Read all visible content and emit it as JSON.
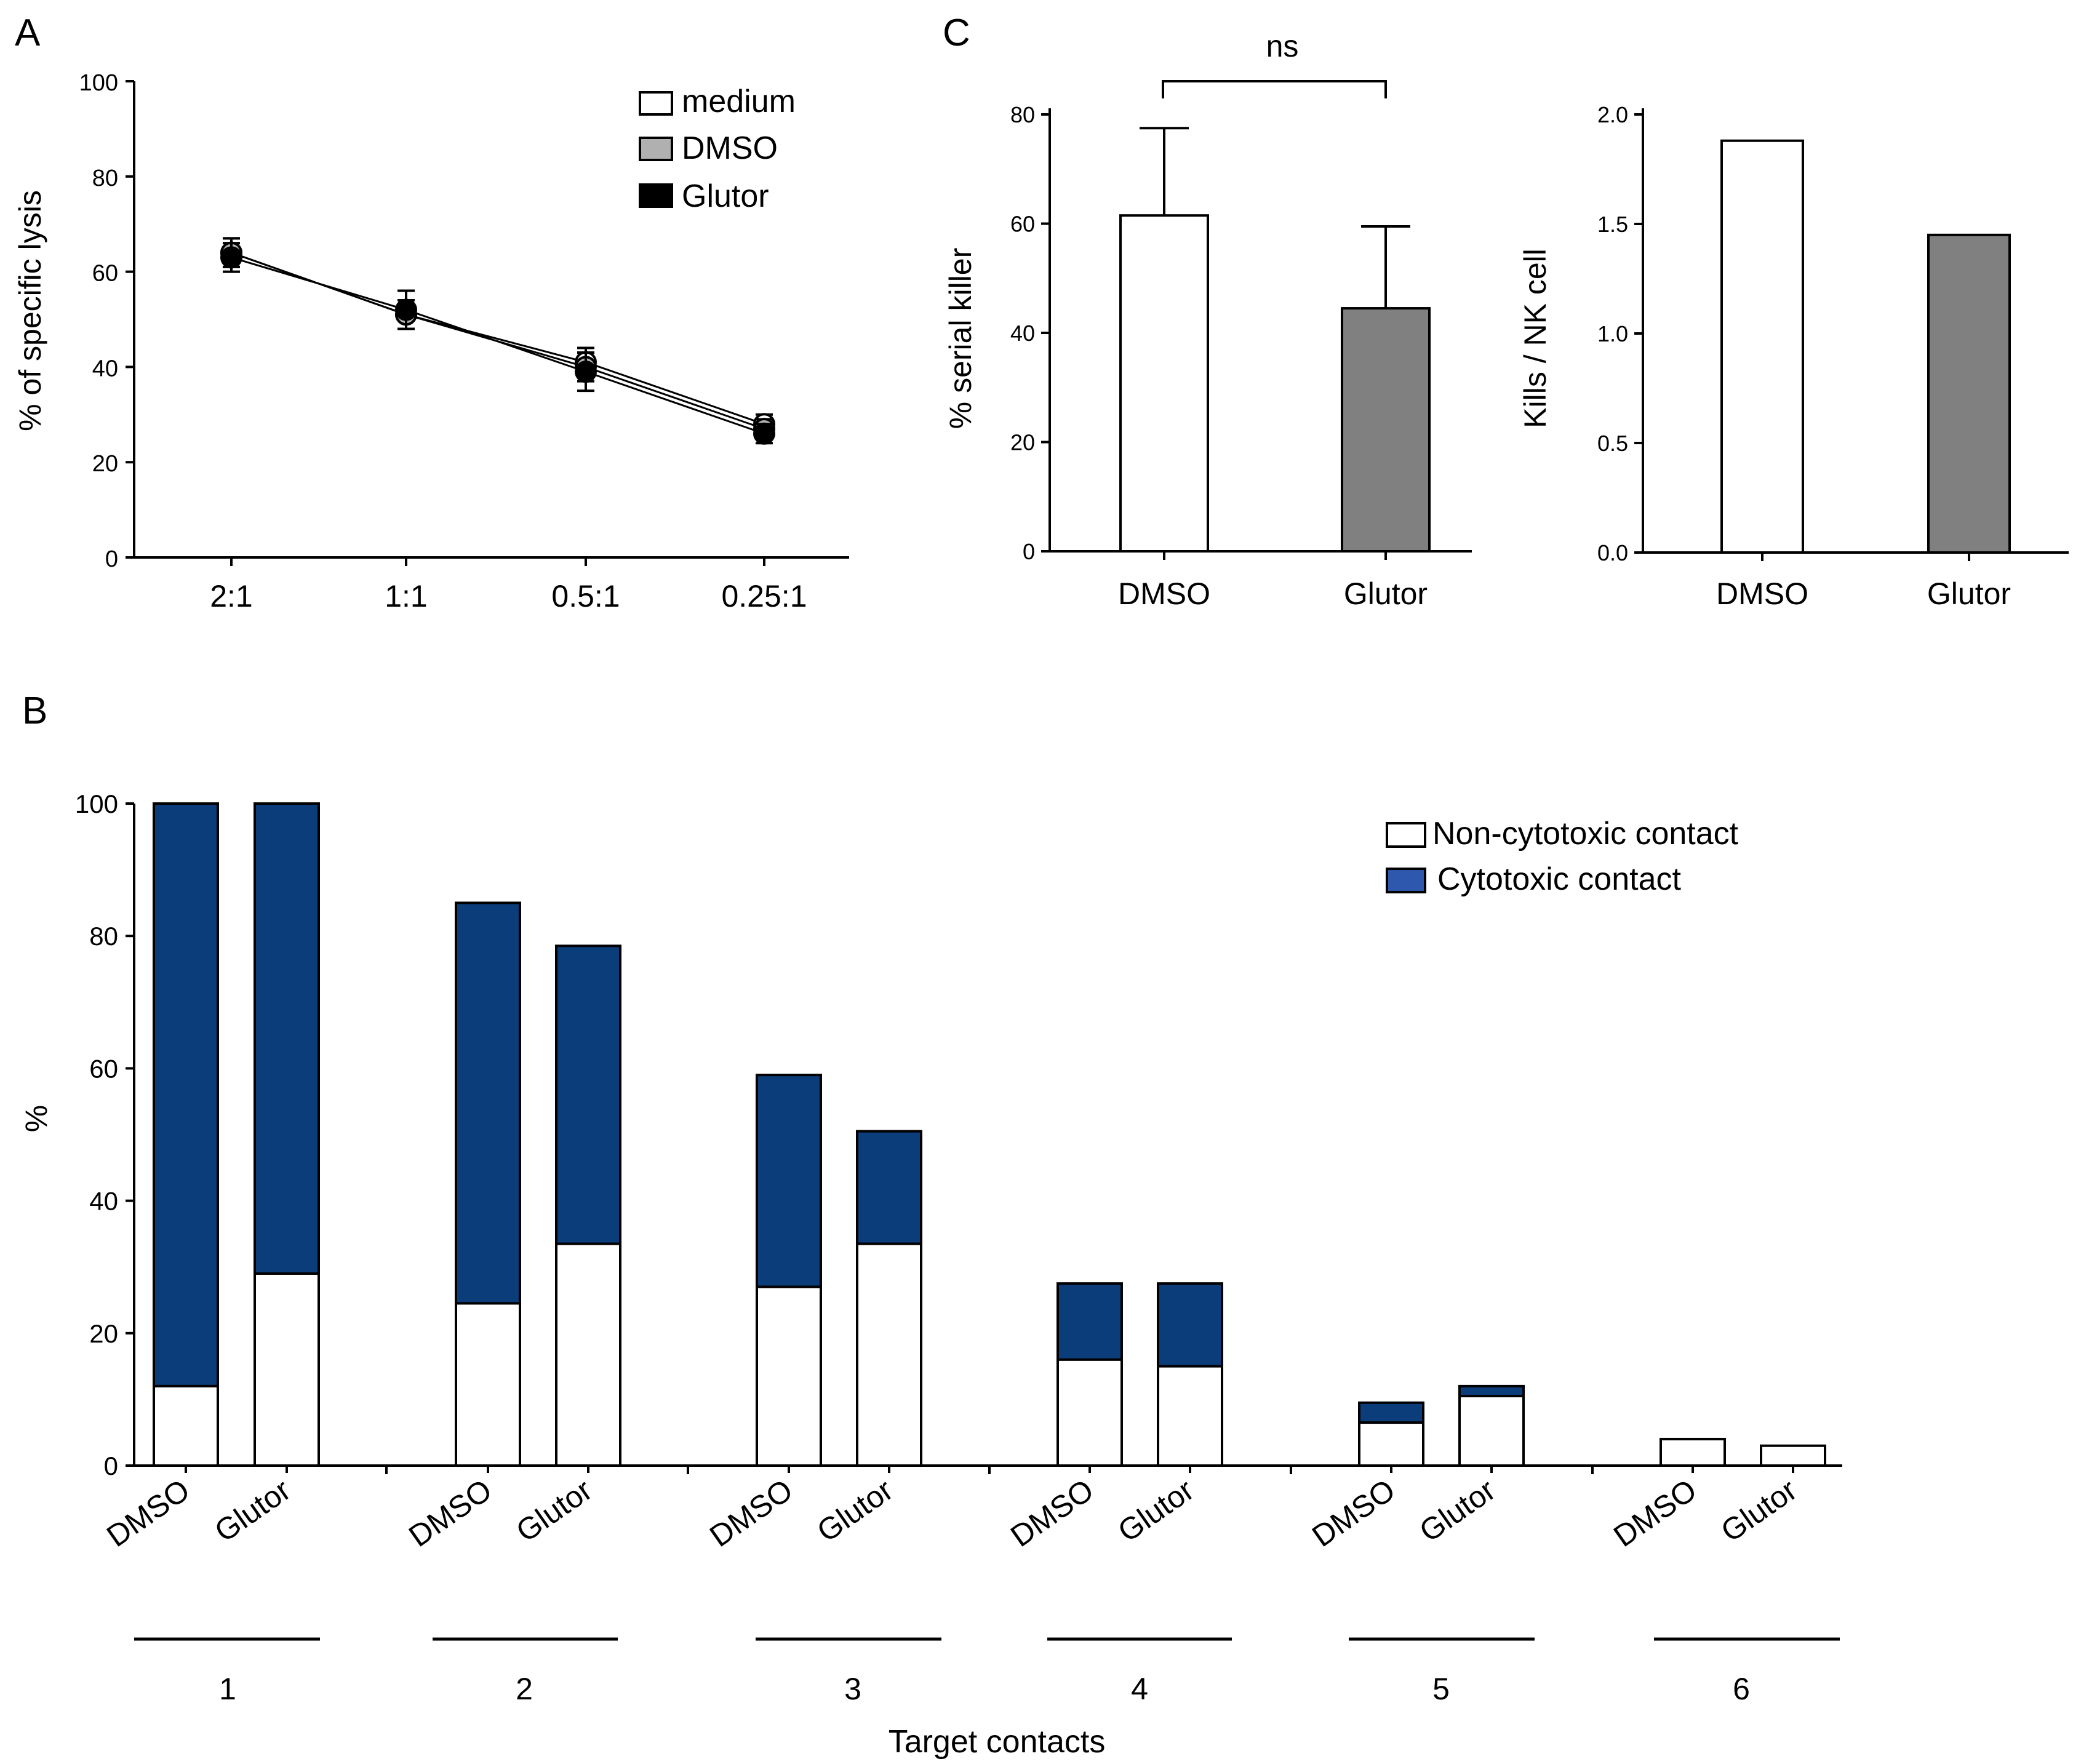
{
  "panel_labels": {
    "a": "A",
    "b": "B",
    "c": "C"
  },
  "colors": {
    "cytotoxic": "#0b3d7a",
    "non_cytotoxic": "#ffffff",
    "glutor_bar": "#808080",
    "dmso_bar": "#ffffff"
  },
  "chart_data": [
    {
      "id": "A",
      "type": "line",
      "ylabel": "% of specific lysis",
      "xlabel": "",
      "categories": [
        "2:1",
        "1:1",
        "0.5:1",
        "0.25:1"
      ],
      "ylim": [
        0,
        100
      ],
      "yticks": [
        "0",
        "20",
        "40",
        "60",
        "80",
        "100"
      ],
      "legend_position": "top-right",
      "series": [
        {
          "name": "medium",
          "color": "#ffffff",
          "values": [
            64,
            51,
            41,
            28
          ],
          "errors": [
            3,
            3,
            3,
            2
          ]
        },
        {
          "name": "DMSO",
          "color": "#b0b0b0",
          "values": [
            64,
            51,
            40,
            27
          ],
          "errors": [
            3,
            3,
            3,
            2
          ]
        },
        {
          "name": "Glutor",
          "color": "#000000",
          "values": [
            63,
            52,
            39,
            26
          ],
          "errors": [
            3,
            4,
            4,
            2
          ]
        }
      ]
    },
    {
      "id": "B",
      "type": "bar",
      "stacked": true,
      "title": "",
      "ylabel": "%",
      "xlabel": "Target contacts",
      "ylim": [
        0,
        100
      ],
      "yticks": [
        "0",
        "20",
        "40",
        "60",
        "80",
        "100"
      ],
      "legend_position": "top-right",
      "groups": [
        "1",
        "2",
        "3",
        "4",
        "5",
        "6"
      ],
      "conditions": [
        "DMSO",
        "Glutor"
      ],
      "series": [
        {
          "name": "Non-cytotoxic contact",
          "color": "#ffffff",
          "values": [
            12,
            29,
            24.5,
            33.5,
            27,
            33.5,
            16,
            15,
            6.5,
            10.5,
            4,
            3
          ]
        },
        {
          "name": "Cytotoxic contact",
          "color": "#0b3d7a",
          "values": [
            88,
            71,
            60.5,
            45,
            32,
            17,
            11.5,
            12.5,
            3,
            1.5,
            0,
            0
          ]
        }
      ]
    },
    {
      "id": "C-left",
      "type": "bar",
      "ylabel": "% serial killer",
      "categories": [
        "DMSO",
        "Glutor"
      ],
      "values": [
        61.5,
        44.5
      ],
      "errors": [
        16,
        15
      ],
      "colors": [
        "#ffffff",
        "#808080"
      ],
      "ylim": [
        0,
        80
      ],
      "yticks": [
        "0",
        "20",
        "40",
        "60",
        "80"
      ],
      "annotation": "ns"
    },
    {
      "id": "C-right",
      "type": "bar",
      "ylabel": "Kills / NK cell",
      "categories": [
        "DMSO",
        "Glutor"
      ],
      "values": [
        1.88,
        1.45
      ],
      "colors": [
        "#ffffff",
        "#808080"
      ],
      "ylim": [
        0,
        2.0
      ],
      "yticks": [
        "0.0",
        "0.5",
        "1.0",
        "1.5",
        "2.0"
      ]
    }
  ]
}
